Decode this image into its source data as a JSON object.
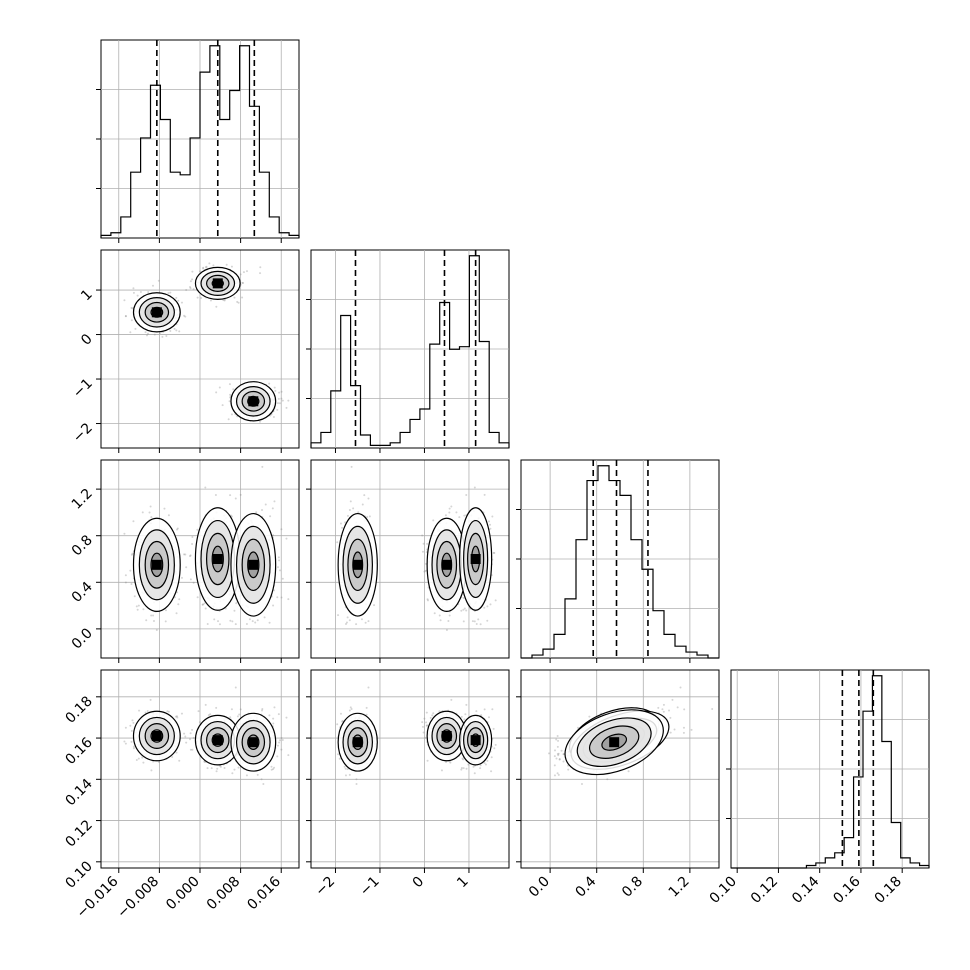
{
  "chart_data": {
    "type": "corner",
    "variables": [
      {
        "name": "",
        "range": [
          -0.0195,
          0.0195
        ],
        "ticks": [
          -0.016,
          -0.008,
          0.0,
          0.008,
          0.016
        ],
        "tick_labels": [
          "−0.016",
          "−0.008",
          "0.000",
          "0.008",
          "0.016"
        ],
        "quantiles": [
          -0.0085,
          0.0035,
          0.0107
        ]
      },
      {
        "name": "",
        "range": [
          -2.55,
          1.9
        ],
        "ticks": [
          -2,
          -1,
          0,
          1
        ],
        "tick_labels": [
          "−2",
          "−1",
          "0",
          "1"
        ],
        "quantiles": [
          -1.55,
          0.45,
          1.15
        ]
      },
      {
        "name": "",
        "range": [
          -0.25,
          1.45
        ],
        "ticks": [
          0.0,
          0.4,
          0.8,
          1.2
        ],
        "tick_labels": [
          "0.0",
          "0.4",
          "0.8",
          "1.2"
        ],
        "quantiles": [
          0.37,
          0.57,
          0.84
        ]
      },
      {
        "name": "",
        "range": [
          0.097,
          0.193
        ],
        "ticks": [
          0.1,
          0.12,
          0.14,
          0.16,
          0.18
        ],
        "tick_labels": [
          "0.10",
          "0.12",
          "0.14",
          "0.16",
          "0.18"
        ],
        "quantiles": [
          0.151,
          0.159,
          0.166
        ]
      }
    ],
    "histograms": [
      {
        "variable": 0,
        "bins": [
          -0.0195,
          0.0195
        ],
        "counts": [
          1,
          2,
          8,
          25,
          38,
          58,
          45,
          25,
          24,
          38,
          63,
          73,
          45,
          56,
          73,
          50,
          25,
          8,
          2,
          1
        ]
      },
      {
        "variable": 1,
        "bins": [
          -2.55,
          1.9
        ],
        "counts": [
          2,
          6,
          22,
          51,
          24,
          5,
          1,
          1,
          2,
          6,
          11,
          15,
          40,
          56,
          38,
          39,
          74,
          41,
          6,
          2
        ]
      },
      {
        "variable": 2,
        "bins": [
          -0.25,
          1.45
        ],
        "counts": [
          0,
          1,
          3,
          8,
          20,
          40,
          60,
          65,
          60,
          55,
          40,
          30,
          16,
          8,
          4,
          2,
          1,
          0
        ]
      },
      {
        "variable": 3,
        "bins": [
          0.097,
          0.193
        ],
        "counts": [
          0,
          0,
          0,
          0,
          0,
          0,
          0,
          0,
          1,
          2,
          4,
          6,
          12,
          36,
          62,
          76,
          50,
          18,
          4,
          2,
          1
        ]
      }
    ],
    "clusters": [
      {
        "center": [
          -0.0085,
          0.5,
          0.55,
          0.161
        ],
        "sd": [
          0.0023,
          0.22,
          0.2,
          0.006
        ]
      },
      {
        "center": [
          0.0035,
          1.15,
          0.6,
          0.159
        ],
        "sd": [
          0.0022,
          0.18,
          0.22,
          0.006
        ]
      },
      {
        "center": [
          0.0105,
          -1.5,
          0.55,
          0.158
        ],
        "sd": [
          0.0022,
          0.22,
          0.22,
          0.007
        ]
      }
    ],
    "legend": "none",
    "grid": true
  },
  "colors": {
    "ink": "#000000",
    "grid": "#b0b0b0",
    "density": "#7f7f7f",
    "points": "#888888"
  }
}
